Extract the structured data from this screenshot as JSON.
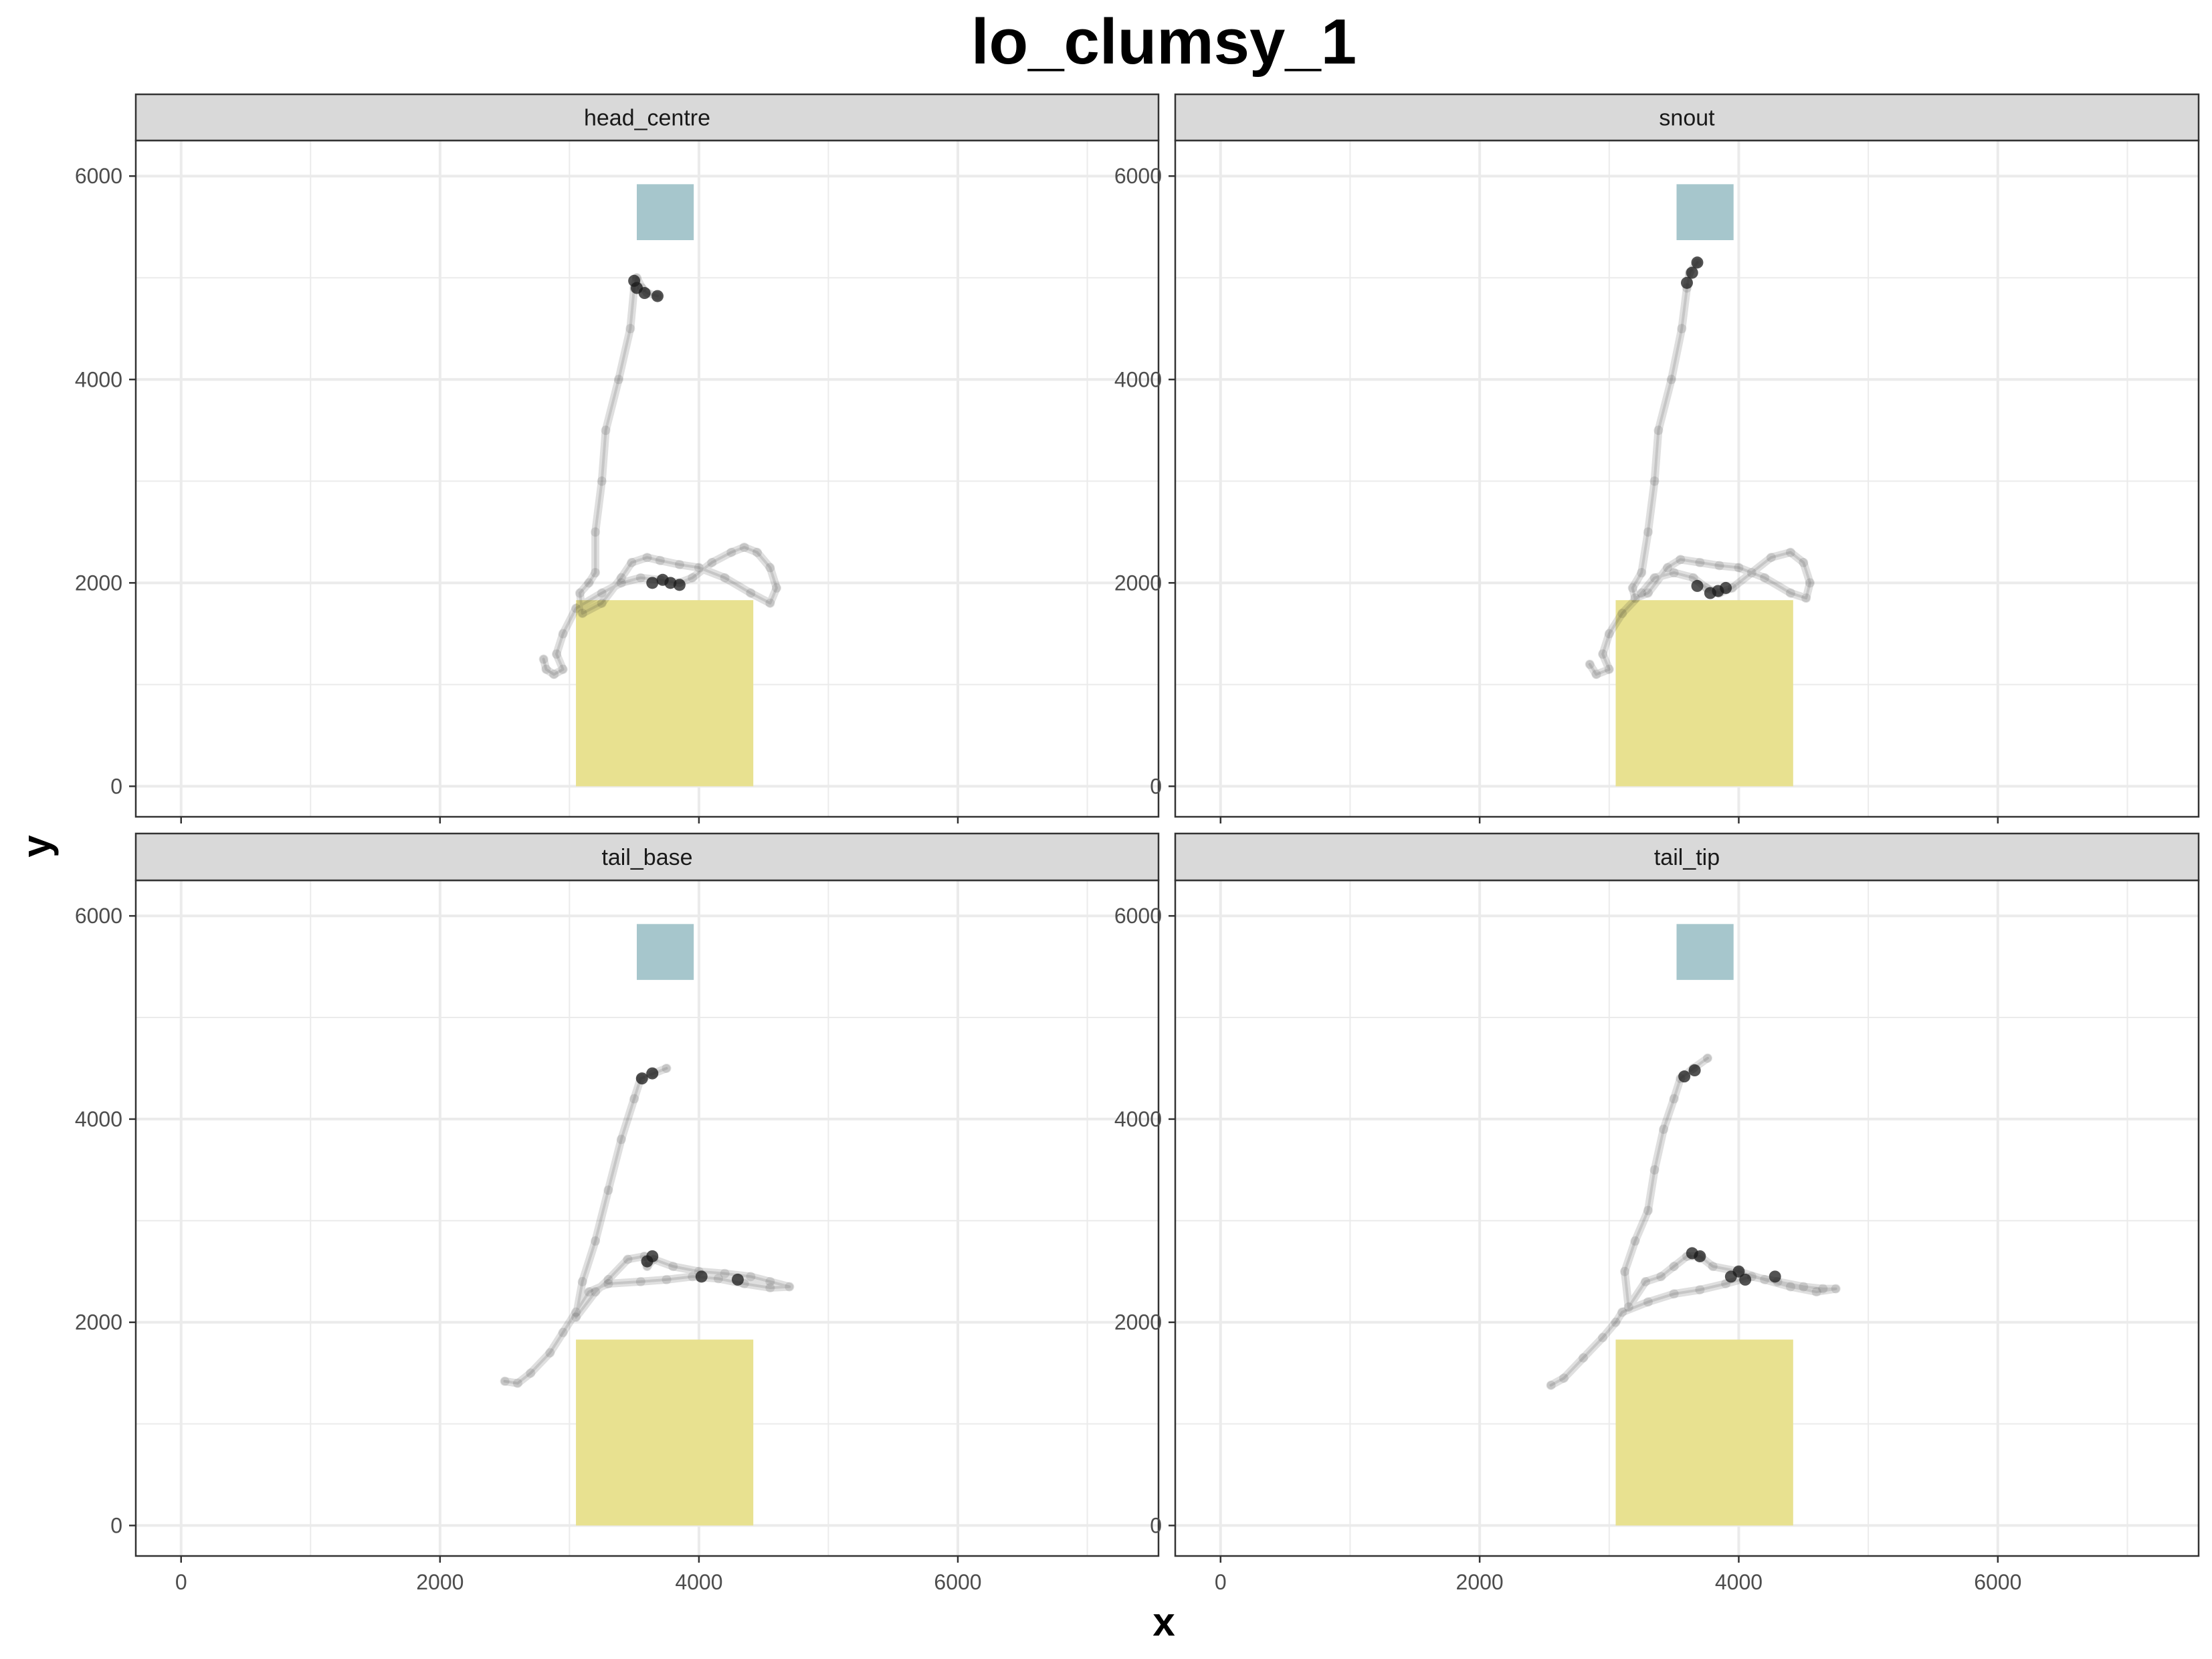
{
  "chart_data": {
    "type": "scatter",
    "title": "lo_clumsy_1",
    "xlabel": "x",
    "ylabel": "y",
    "xlim": [
      -350,
      7550
    ],
    "ylim": [
      -300,
      6350
    ],
    "x_ticks": [
      0,
      2000,
      4000,
      6000
    ],
    "y_ticks": [
      0,
      2000,
      4000,
      6000
    ],
    "grid": true,
    "legend": "none",
    "colors": {
      "track": "#1a1a1a",
      "yellow_zone": "#e8e190",
      "blue_zone": "#a6c6cc",
      "strip_fill": "#d9d9d9",
      "grid": "#ebebeb",
      "border": "#333333"
    },
    "zones": [
      {
        "name": "yellow",
        "x": [
          3050,
          4420
        ],
        "y": [
          0,
          1830
        ]
      },
      {
        "name": "blue",
        "x": [
          3520,
          3960
        ],
        "y": [
          5370,
          5920
        ]
      }
    ],
    "panels": [
      {
        "label": "head_centre",
        "track": [
          [
            2800,
            1250
          ],
          [
            2820,
            1150
          ],
          [
            2880,
            1100
          ],
          [
            2950,
            1150
          ],
          [
            2900,
            1300
          ],
          [
            2950,
            1500
          ],
          [
            3050,
            1750
          ],
          [
            3250,
            1900
          ],
          [
            3400,
            2000
          ],
          [
            3550,
            2050
          ],
          [
            3700,
            2030
          ],
          [
            3850,
            2000
          ],
          [
            3950,
            2050
          ],
          [
            4100,
            2200
          ],
          [
            4250,
            2300
          ],
          [
            4350,
            2350
          ],
          [
            4450,
            2300
          ],
          [
            4550,
            2150
          ],
          [
            4600,
            1950
          ],
          [
            4550,
            1800
          ],
          [
            4400,
            1900
          ],
          [
            4200,
            2050
          ],
          [
            4000,
            2150
          ],
          [
            3850,
            2180
          ],
          [
            3700,
            2220
          ],
          [
            3600,
            2250
          ],
          [
            3480,
            2200
          ],
          [
            3400,
            2050
          ],
          [
            3250,
            1800
          ],
          [
            3100,
            1700
          ],
          [
            3080,
            1900
          ],
          [
            3150,
            2000
          ],
          [
            3200,
            2100
          ],
          [
            3200,
            2500
          ],
          [
            3250,
            3000
          ],
          [
            3280,
            3500
          ],
          [
            3380,
            4000
          ],
          [
            3470,
            4500
          ],
          [
            3500,
            4900
          ],
          [
            3520,
            5000
          ],
          [
            3560,
            4900
          ],
          [
            3600,
            4850
          ],
          [
            3680,
            4820
          ]
        ],
        "clusters": [
          [
            3640,
            2000
          ],
          [
            3720,
            2030
          ],
          [
            3780,
            2000
          ],
          [
            3850,
            1980
          ],
          [
            3500,
            4970
          ],
          [
            3520,
            4900
          ],
          [
            3580,
            4850
          ],
          [
            3680,
            4820
          ]
        ]
      },
      {
        "label": "snout",
        "track": [
          [
            2850,
            1200
          ],
          [
            2900,
            1100
          ],
          [
            3000,
            1150
          ],
          [
            2950,
            1300
          ],
          [
            3000,
            1500
          ],
          [
            3100,
            1700
          ],
          [
            3250,
            1900
          ],
          [
            3350,
            2050
          ],
          [
            3500,
            2100
          ],
          [
            3650,
            2050
          ],
          [
            3750,
            1950
          ],
          [
            3850,
            1900
          ],
          [
            3950,
            1950
          ],
          [
            4100,
            2100
          ],
          [
            4250,
            2250
          ],
          [
            4400,
            2300
          ],
          [
            4500,
            2200
          ],
          [
            4550,
            2000
          ],
          [
            4520,
            1850
          ],
          [
            4400,
            1900
          ],
          [
            4200,
            2050
          ],
          [
            4000,
            2150
          ],
          [
            3850,
            2170
          ],
          [
            3700,
            2200
          ],
          [
            3550,
            2230
          ],
          [
            3450,
            2150
          ],
          [
            3300,
            1900
          ],
          [
            3200,
            1850
          ],
          [
            3180,
            1950
          ],
          [
            3250,
            2100
          ],
          [
            3300,
            2500
          ],
          [
            3350,
            3000
          ],
          [
            3380,
            3500
          ],
          [
            3480,
            4000
          ],
          [
            3560,
            4500
          ],
          [
            3600,
            4900
          ],
          [
            3620,
            5050
          ],
          [
            3680,
            5150
          ]
        ],
        "clusters": [
          [
            3680,
            1970
          ],
          [
            3780,
            1900
          ],
          [
            3840,
            1920
          ],
          [
            3900,
            1950
          ],
          [
            3600,
            4950
          ],
          [
            3640,
            5050
          ],
          [
            3680,
            5150
          ]
        ]
      },
      {
        "label": "tail_base",
        "track": [
          [
            2500,
            1420
          ],
          [
            2600,
            1400
          ],
          [
            2700,
            1500
          ],
          [
            2850,
            1700
          ],
          [
            2950,
            1900
          ],
          [
            3050,
            2100
          ],
          [
            3150,
            2300
          ],
          [
            3300,
            2380
          ],
          [
            3550,
            2400
          ],
          [
            3750,
            2420
          ],
          [
            3950,
            2450
          ],
          [
            4150,
            2430
          ],
          [
            4350,
            2380
          ],
          [
            4550,
            2340
          ],
          [
            4700,
            2350
          ],
          [
            4550,
            2400
          ],
          [
            4400,
            2450
          ],
          [
            4200,
            2480
          ],
          [
            4000,
            2500
          ],
          [
            3800,
            2550
          ],
          [
            3650,
            2620
          ],
          [
            3600,
            2550
          ],
          [
            3580,
            2650
          ],
          [
            3450,
            2620
          ],
          [
            3300,
            2420
          ],
          [
            3200,
            2300
          ],
          [
            3050,
            2050
          ],
          [
            3100,
            2400
          ],
          [
            3200,
            2800
          ],
          [
            3300,
            3300
          ],
          [
            3400,
            3800
          ],
          [
            3500,
            4200
          ],
          [
            3550,
            4400
          ],
          [
            3650,
            4450
          ],
          [
            3750,
            4500
          ]
        ],
        "clusters": [
          [
            3600,
            2600
          ],
          [
            3640,
            2650
          ],
          [
            4020,
            2450
          ],
          [
            4300,
            2420
          ],
          [
            3560,
            4400
          ],
          [
            3640,
            4450
          ]
        ]
      },
      {
        "label": "tail_tip",
        "track": [
          [
            2550,
            1380
          ],
          [
            2650,
            1450
          ],
          [
            2800,
            1650
          ],
          [
            2950,
            1850
          ],
          [
            3050,
            2000
          ],
          [
            3100,
            2100
          ],
          [
            3300,
            2200
          ],
          [
            3500,
            2280
          ],
          [
            3700,
            2320
          ],
          [
            3900,
            2380
          ],
          [
            4100,
            2450
          ],
          [
            4300,
            2400
          ],
          [
            4500,
            2350
          ],
          [
            4650,
            2330
          ],
          [
            4750,
            2330
          ],
          [
            4600,
            2300
          ],
          [
            4400,
            2350
          ],
          [
            4200,
            2420
          ],
          [
            4000,
            2500
          ],
          [
            3800,
            2550
          ],
          [
            3700,
            2650
          ],
          [
            3600,
            2650
          ],
          [
            3500,
            2550
          ],
          [
            3400,
            2450
          ],
          [
            3280,
            2400
          ],
          [
            3150,
            2150
          ],
          [
            3120,
            2500
          ],
          [
            3200,
            2800
          ],
          [
            3300,
            3100
          ],
          [
            3350,
            3500
          ],
          [
            3420,
            3900
          ],
          [
            3500,
            4200
          ],
          [
            3550,
            4400
          ],
          [
            3650,
            4500
          ],
          [
            3760,
            4600
          ]
        ],
        "clusters": [
          [
            3640,
            2680
          ],
          [
            3700,
            2650
          ],
          [
            3940,
            2450
          ],
          [
            4000,
            2500
          ],
          [
            4050,
            2420
          ],
          [
            4280,
            2450
          ],
          [
            3580,
            4420
          ],
          [
            3660,
            4480
          ]
        ]
      }
    ]
  }
}
